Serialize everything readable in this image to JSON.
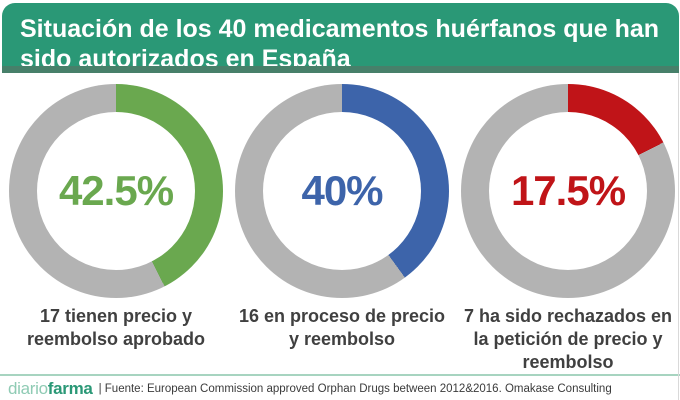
{
  "header": {
    "title": "Situación de los 40 medicamentos huérfanos que han\nsido autorizados en España",
    "background_color": "#2a9876",
    "strip_color": "#47806a",
    "text_color": "#ffffff"
  },
  "chart_data": [
    {
      "type": "pie",
      "donut": true,
      "percent": 42.5,
      "percent_label": "42.5%",
      "count": 17,
      "caption": "17 tienen precio y\nreembolso aprobado",
      "segment_color": "#6aa84f",
      "track_color": "#b3b3b3",
      "total": 40
    },
    {
      "type": "pie",
      "donut": true,
      "percent": 40,
      "percent_label": "40%",
      "count": 16,
      "caption": "16 en proceso de precio\ny reembolso",
      "segment_color": "#3d64aa",
      "track_color": "#b3b3b3",
      "total": 40
    },
    {
      "type": "pie",
      "donut": true,
      "percent": 17.5,
      "percent_label": "17.5%",
      "count": 7,
      "caption": "7 ha sido rechazados en\nla petición de precio y\nreembolso",
      "segment_color": "#c01418",
      "track_color": "#b3b3b3",
      "total": 40
    }
  ],
  "footer": {
    "logo_light": "diario",
    "logo_bold": "farma",
    "source": "| Fuente: European Commission approved Orphan Drugs between 2012&2016. Omakase Consulting",
    "line_color": "#a7d4c0"
  }
}
